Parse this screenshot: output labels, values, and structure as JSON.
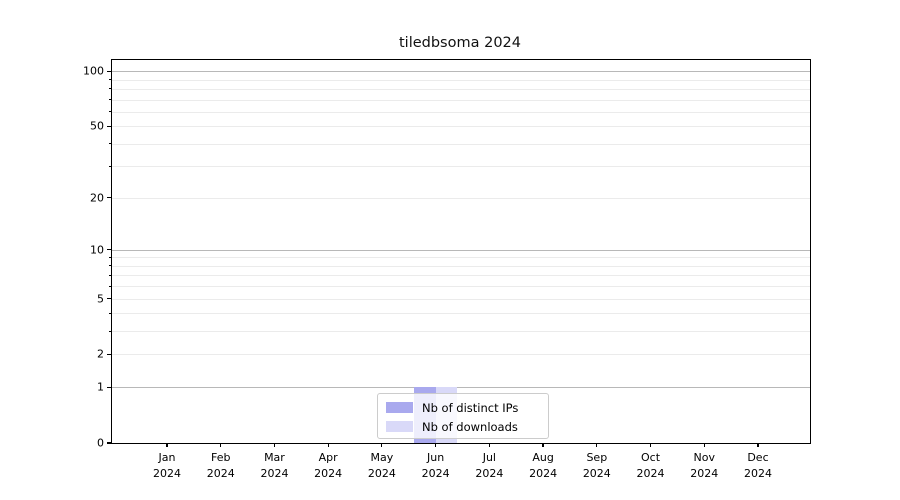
{
  "chart_data": {
    "type": "bar",
    "title": "tiledbsoma 2024",
    "categories": [
      "Jan",
      "Feb",
      "Mar",
      "Apr",
      "May",
      "Jun",
      "Jul",
      "Aug",
      "Sep",
      "Oct",
      "Nov",
      "Dec"
    ],
    "x_tick_year": "2024",
    "series": [
      {
        "name": "Nb of distinct IPs",
        "color": "#a9a9ee",
        "values": [
          0,
          0,
          0,
          0,
          0,
          1,
          0,
          0,
          0,
          0,
          0,
          0
        ]
      },
      {
        "name": "Nb of downloads",
        "color": "#d9d9f8",
        "values": [
          0,
          0,
          0,
          0,
          0,
          1,
          0,
          0,
          0,
          0,
          0,
          0
        ]
      }
    ],
    "y_axis": {
      "scale": "log1p",
      "max": 115,
      "tick_values": [
        0,
        1,
        2,
        5,
        10,
        20,
        50,
        100
      ],
      "minor_tick_values": [
        3,
        4,
        6,
        7,
        8,
        9,
        30,
        40,
        60,
        70,
        80,
        90
      ],
      "major_grid_values": [
        1,
        10,
        100
      ],
      "minor_grid_values": [
        2,
        3,
        4,
        5,
        6,
        7,
        8,
        9,
        20,
        30,
        40,
        50,
        60,
        70,
        80,
        90
      ]
    },
    "ylim": [
      0,
      115
    ],
    "grid": true,
    "legend_position": "lower center",
    "colors": {
      "major_grid": "#b8b8b8",
      "minor_grid": "#ebebeb",
      "spine": "#000000",
      "legend_border": "#cccccc",
      "background": "#ffffff",
      "text": "#000000"
    }
  }
}
